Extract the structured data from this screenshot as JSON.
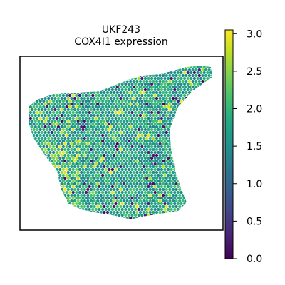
{
  "chart_data": {
    "type": "scatter",
    "title_lines": [
      "UKF243",
      "COX4I1 expression"
    ],
    "xlabel": "",
    "ylabel": "",
    "grid": false,
    "colormap": "viridis",
    "colorbar": {
      "range": [
        0.0,
        3.05
      ],
      "ticks": [
        0.0,
        0.5,
        1.0,
        1.5,
        2.0,
        2.5,
        3.0
      ],
      "tick_labels": [
        "0.0",
        "0.5",
        "1.0",
        "1.5",
        "2.0",
        "2.5",
        "3.0"
      ]
    },
    "colors": {
      "low": "#440154",
      "mid": "#21918c",
      "high": "#fde725"
    }
  }
}
